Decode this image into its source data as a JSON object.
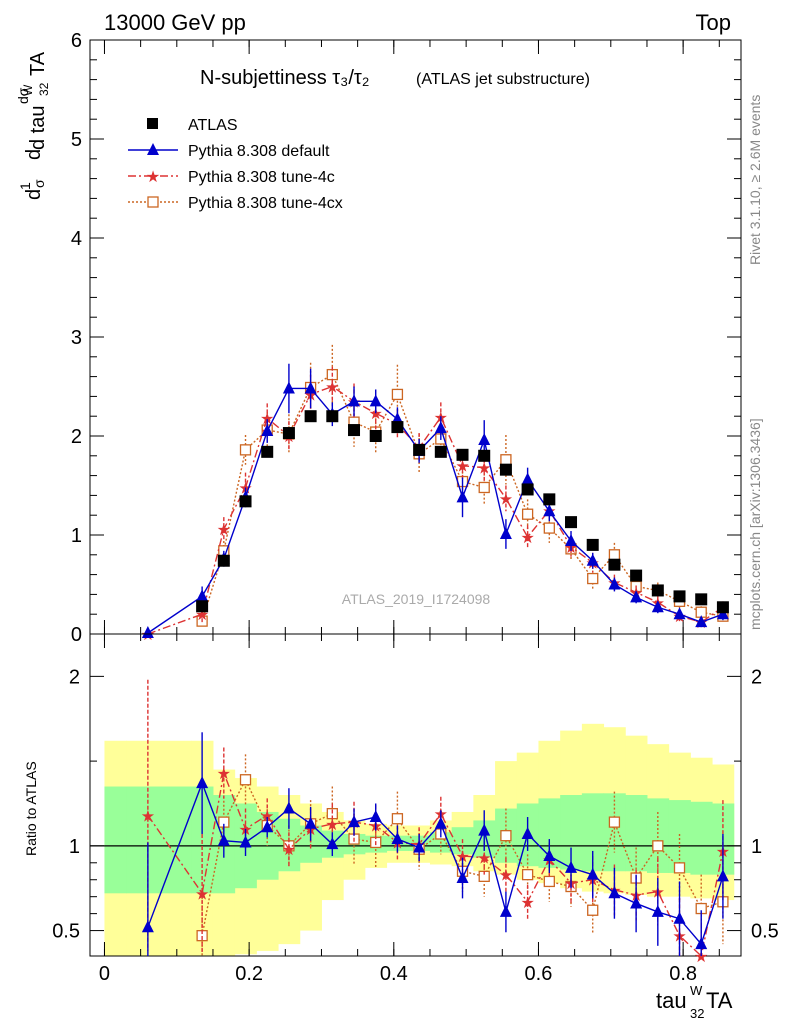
{
  "header": {
    "left": "13000 GeV pp",
    "right": "Top"
  },
  "side_label_top": "Rivet 3.1.10, ≥ 2.6M events",
  "side_label_bottom": "mcplots.cern.ch [arXiv:1306.3436]",
  "watermark": "ATLAS_2019_I1724098",
  "colors": {
    "atlas": "#000000",
    "default": "#0000cc",
    "tune4c": "#dd3333",
    "tune4cx": "#cc6622",
    "band_yellow": "#ffff99",
    "band_green": "#99ff99"
  },
  "chart_data": [
    {
      "id": "main",
      "type": "line",
      "title": "N-subjettiness τ₃/τ₂",
      "title_note": "(ATLAS jet substructure)",
      "ylabel": "dσ/d tau₃₂ᵂTA · 1/σ",
      "xlim": [
        -0.02,
        0.88
      ],
      "ylim": [
        0,
        6
      ],
      "yticks": [
        "0",
        "1",
        "2",
        "3",
        "4",
        "5",
        "6"
      ],
      "legend": "top-left",
      "series": [
        {
          "name": "ATLAS",
          "marker": "square",
          "x": [
            0.135,
            0.165,
            0.195,
            0.225,
            0.255,
            0.285,
            0.315,
            0.345,
            0.375,
            0.405,
            0.435,
            0.465,
            0.495,
            0.525,
            0.555,
            0.585,
            0.615,
            0.645,
            0.675,
            0.705,
            0.735,
            0.765,
            0.795,
            0.825,
            0.855
          ],
          "y": [
            0.28,
            0.74,
            1.34,
            1.84,
            2.03,
            2.2,
            2.2,
            2.06,
            2.0,
            2.09,
            1.86,
            1.84,
            1.81,
            1.8,
            1.66,
            1.46,
            1.36,
            1.13,
            0.9,
            0.7,
            0.59,
            0.44,
            0.38,
            0.35,
            0.27
          ],
          "err": [
            0.02,
            0.03,
            0.03,
            0.03,
            0.03,
            0.03,
            0.03,
            0.03,
            0.03,
            0.03,
            0.03,
            0.03,
            0.03,
            0.03,
            0.03,
            0.03,
            0.03,
            0.03,
            0.03,
            0.03,
            0.03,
            0.03,
            0.03,
            0.03,
            0.03
          ]
        },
        {
          "name": "Pythia 8.308 default",
          "marker": "triangle",
          "x": [
            0.06,
            0.135,
            0.165,
            0.195,
            0.225,
            0.255,
            0.285,
            0.315,
            0.345,
            0.375,
            0.405,
            0.435,
            0.465,
            0.495,
            0.525,
            0.555,
            0.585,
            0.615,
            0.645,
            0.675,
            0.705,
            0.735,
            0.765,
            0.795,
            0.825,
            0.855
          ],
          "y": [
            0.01,
            0.38,
            0.76,
            1.38,
            2.05,
            2.48,
            2.48,
            2.22,
            2.35,
            2.35,
            2.17,
            1.85,
            2.08,
            1.38,
            1.96,
            1.01,
            1.56,
            1.24,
            0.94,
            0.74,
            0.5,
            0.37,
            0.27,
            0.2,
            0.12,
            0.2
          ],
          "err": [
            0.0,
            0.1,
            0.08,
            0.1,
            0.12,
            0.25,
            0.2,
            0.12,
            0.15,
            0.12,
            0.12,
            0.12,
            0.12,
            0.2,
            0.2,
            0.15,
            0.12,
            0.1,
            0.1,
            0.08,
            0.07,
            0.06,
            0.06,
            0.05,
            0.05,
            0.06
          ]
        },
        {
          "name": "Pythia 8.308 tune-4c",
          "marker": "star",
          "x": [
            0.06,
            0.135,
            0.165,
            0.195,
            0.225,
            0.255,
            0.285,
            0.315,
            0.345,
            0.375,
            0.405,
            0.435,
            0.465,
            0.495,
            0.525,
            0.555,
            0.585,
            0.615,
            0.645,
            0.675,
            0.705,
            0.735,
            0.765,
            0.795,
            0.825,
            0.855
          ],
          "y": [
            0.0,
            0.2,
            1.06,
            1.48,
            2.18,
            2.0,
            2.42,
            2.5,
            2.35,
            2.23,
            2.12,
            1.88,
            2.19,
            1.7,
            1.68,
            1.37,
            0.98,
            1.25,
            0.88,
            0.72,
            0.52,
            0.42,
            0.32,
            0.18,
            0.12,
            0.27
          ],
          "err": [
            0.0,
            0.08,
            0.12,
            0.15,
            0.15,
            0.15,
            0.2,
            0.2,
            0.18,
            0.18,
            0.15,
            0.15,
            0.15,
            0.15,
            0.15,
            0.13,
            0.12,
            0.12,
            0.1,
            0.1,
            0.08,
            0.07,
            0.06,
            0.05,
            0.05,
            0.06
          ]
        },
        {
          "name": "Pythia 8.308 tune-4cx",
          "marker": "opensquare",
          "x": [
            0.135,
            0.165,
            0.195,
            0.225,
            0.255,
            0.285,
            0.315,
            0.345,
            0.375,
            0.405,
            0.435,
            0.465,
            0.495,
            0.525,
            0.555,
            0.585,
            0.615,
            0.645,
            0.675,
            0.705,
            0.735,
            0.765,
            0.795,
            0.825,
            0.855
          ],
          "y": [
            0.13,
            0.84,
            1.86,
            2.06,
            2.02,
            2.49,
            2.62,
            2.14,
            2.04,
            2.42,
            1.82,
            1.97,
            1.54,
            1.48,
            1.76,
            1.21,
            1.07,
            0.86,
            0.56,
            0.8,
            0.48,
            0.44,
            0.33,
            0.22,
            0.18
          ],
          "err": [
            0.05,
            0.1,
            0.15,
            0.18,
            0.2,
            0.25,
            0.3,
            0.25,
            0.22,
            0.3,
            0.2,
            0.2,
            0.18,
            0.18,
            0.25,
            0.15,
            0.15,
            0.12,
            0.12,
            0.12,
            0.1,
            0.08,
            0.07,
            0.06,
            0.06
          ]
        }
      ]
    },
    {
      "id": "ratio",
      "type": "line",
      "ylabel": "Ratio to ATLAS",
      "xlabel": "tau₃₂ᵂTA",
      "xlim": [
        -0.02,
        0.88
      ],
      "ylim": [
        0.35,
        2.25
      ],
      "yticks": [
        "0.5",
        "1",
        "2"
      ],
      "xticks": [
        "0",
        "0.2",
        "0.4",
        "0.6",
        "0.8"
      ],
      "bands": {
        "edges": [
          0.0,
          0.03,
          0.06,
          0.09,
          0.12,
          0.15,
          0.18,
          0.21,
          0.24,
          0.27,
          0.3,
          0.33,
          0.36,
          0.39,
          0.42,
          0.45,
          0.48,
          0.51,
          0.54,
          0.57,
          0.6,
          0.63,
          0.66,
          0.69,
          0.72,
          0.75,
          0.78,
          0.81,
          0.84,
          0.87
        ],
        "yellow_lo": [
          0.35,
          0.35,
          0.35,
          0.35,
          0.35,
          0.35,
          0.36,
          0.38,
          0.42,
          0.5,
          0.68,
          0.8,
          0.87,
          0.9,
          0.9,
          0.89,
          0.88,
          0.85,
          0.83,
          0.8,
          0.78,
          0.75,
          0.73,
          0.72,
          0.71,
          0.7,
          0.7,
          0.69,
          0.68
        ],
        "yellow_hi": [
          1.62,
          1.62,
          1.62,
          1.62,
          1.62,
          1.45,
          1.4,
          1.35,
          1.3,
          1.25,
          1.2,
          1.15,
          1.13,
          1.12,
          1.12,
          1.15,
          1.2,
          1.3,
          1.5,
          1.55,
          1.62,
          1.68,
          1.72,
          1.7,
          1.65,
          1.6,
          1.55,
          1.52,
          1.48
        ],
        "green_lo": [
          0.72,
          0.72,
          0.72,
          0.72,
          0.72,
          0.72,
          0.75,
          0.8,
          0.85,
          0.9,
          0.93,
          0.95,
          0.96,
          0.97,
          0.97,
          0.96,
          0.95,
          0.93,
          0.9,
          0.88,
          0.87,
          0.86,
          0.85,
          0.85,
          0.85,
          0.84,
          0.84,
          0.83,
          0.83
        ],
        "green_hi": [
          1.35,
          1.35,
          1.35,
          1.35,
          1.35,
          1.3,
          1.25,
          1.2,
          1.16,
          1.12,
          1.09,
          1.07,
          1.06,
          1.06,
          1.06,
          1.08,
          1.11,
          1.15,
          1.22,
          1.25,
          1.28,
          1.3,
          1.31,
          1.31,
          1.3,
          1.28,
          1.27,
          1.26,
          1.25
        ]
      },
      "series": [
        {
          "name": "Pythia 8.308 default",
          "x": [
            0.06,
            0.135,
            0.165,
            0.195,
            0.225,
            0.255,
            0.285,
            0.315,
            0.345,
            0.375,
            0.405,
            0.435,
            0.465,
            0.495,
            0.525,
            0.555,
            0.585,
            0.615,
            0.645,
            0.675,
            0.705,
            0.735,
            0.765,
            0.795,
            0.825,
            0.855
          ],
          "y": [
            0.52,
            1.37,
            1.03,
            1.02,
            1.11,
            1.22,
            1.13,
            1.01,
            1.14,
            1.17,
            1.04,
            0.99,
            1.13,
            0.81,
            1.09,
            0.61,
            1.07,
            0.94,
            0.87,
            0.83,
            0.72,
            0.66,
            0.61,
            0.57,
            0.42,
            0.82
          ],
          "err": [
            0.5,
            0.3,
            0.1,
            0.08,
            0.06,
            0.12,
            0.1,
            0.07,
            0.08,
            0.08,
            0.08,
            0.08,
            0.08,
            0.12,
            0.12,
            0.12,
            0.1,
            0.1,
            0.12,
            0.14,
            0.15,
            0.17,
            0.2,
            0.22,
            0.2,
            0.25
          ]
        },
        {
          "name": "Pythia 8.308 tune-4c",
          "x": [
            0.06,
            0.135,
            0.165,
            0.195,
            0.225,
            0.255,
            0.285,
            0.315,
            0.345,
            0.375,
            0.405,
            0.435,
            0.465,
            0.495,
            0.525,
            0.555,
            0.585,
            0.615,
            0.645,
            0.675,
            0.705,
            0.735,
            0.765,
            0.795,
            0.825,
            0.855
          ],
          "y": [
            1.18,
            0.72,
            1.43,
            1.1,
            1.18,
            0.98,
            1.1,
            1.13,
            1.14,
            1.12,
            1.02,
            1.01,
            1.19,
            0.94,
            0.93,
            0.83,
            0.67,
            0.92,
            0.78,
            0.8,
            0.74,
            0.71,
            0.73,
            0.47,
            0.34,
            0.97
          ],
          "err": [
            0.8,
            0.35,
            0.15,
            0.12,
            0.1,
            0.1,
            0.12,
            0.12,
            0.12,
            0.12,
            0.1,
            0.1,
            0.1,
            0.1,
            0.1,
            0.1,
            0.1,
            0.1,
            0.12,
            0.14,
            0.15,
            0.15,
            0.2,
            0.22,
            0.2,
            0.3
          ]
        },
        {
          "name": "Pythia 8.308 tune-4cx",
          "x": [
            0.135,
            0.165,
            0.195,
            0.225,
            0.255,
            0.285,
            0.315,
            0.345,
            0.375,
            0.405,
            0.435,
            0.465,
            0.495,
            0.525,
            0.555,
            0.585,
            0.615,
            0.645,
            0.675,
            0.705,
            0.735,
            0.765,
            0.795,
            0.825,
            0.855
          ],
          "y": [
            0.47,
            1.14,
            1.39,
            1.12,
            1.0,
            1.13,
            1.19,
            1.04,
            1.02,
            1.16,
            0.98,
            1.07,
            0.85,
            0.82,
            1.06,
            0.83,
            0.79,
            0.76,
            0.62,
            1.14,
            0.81,
            1.0,
            0.87,
            0.63,
            0.67
          ],
          "err": [
            0.25,
            0.15,
            0.15,
            0.12,
            0.12,
            0.14,
            0.16,
            0.15,
            0.15,
            0.16,
            0.12,
            0.12,
            0.12,
            0.12,
            0.16,
            0.12,
            0.12,
            0.12,
            0.14,
            0.18,
            0.18,
            0.2,
            0.2,
            0.2,
            0.25
          ]
        }
      ]
    }
  ]
}
